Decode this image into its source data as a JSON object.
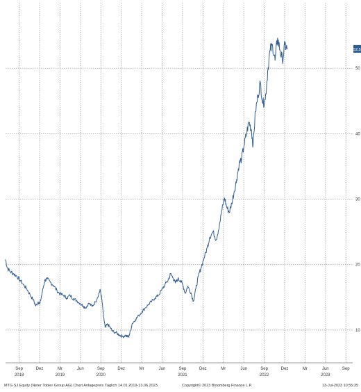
{
  "colors": {
    "line": "#2e5d93",
    "grid": "#9a9a9a",
    "badge": "#2e5d93",
    "badge_text": "#ffffff"
  },
  "footer": {
    "left": "MTG SJ Equity (Neter Tobler Group AG) Chart Anlagepreis Täglich 14.01.2019-13.06.2023",
    "middle": "Copyright© 2023 Bloomberg Finance L.P.",
    "right": "13-Jul-2023 10:55:35"
  },
  "last_value_label": "52.5",
  "chart_data": {
    "type": "line",
    "title": "",
    "xlabel": "",
    "ylabel": "",
    "ylim": [
      5,
      60
    ],
    "y_ticks": [
      10,
      20,
      30,
      40,
      50
    ],
    "grid": true,
    "x_ticks": [
      {
        "t": 2019.667,
        "label": "Sep"
      },
      {
        "t": 2019.917,
        "label": "Dez"
      },
      {
        "t": 2020.167,
        "label": "Mr"
      },
      {
        "t": 2020.417,
        "label": "Jun"
      },
      {
        "t": 2020.667,
        "label": "Sep"
      },
      {
        "t": 2020.917,
        "label": "Dez"
      },
      {
        "t": 2021.167,
        "label": "Mr"
      },
      {
        "t": 2021.417,
        "label": "Jun"
      },
      {
        "t": 2021.667,
        "label": "Sep"
      },
      {
        "t": 2021.917,
        "label": "Dez"
      },
      {
        "t": 2022.167,
        "label": "Mr"
      },
      {
        "t": 2022.417,
        "label": "Jun"
      },
      {
        "t": 2022.667,
        "label": "Sep"
      },
      {
        "t": 2022.917,
        "label": "Dez"
      },
      {
        "t": 2023.167,
        "label": "Mr"
      },
      {
        "t": 2023.417,
        "label": "Jun"
      },
      {
        "t": 2023.667,
        "label": "Sep"
      }
    ],
    "year_labels": [
      {
        "t": 2019.667,
        "label": "2018"
      },
      {
        "t": 2020.167,
        "label": "2019"
      },
      {
        "t": 2020.667,
        "label": "2020"
      },
      {
        "t": 2021.667,
        "label": "2021"
      },
      {
        "t": 2022.667,
        "label": "2022"
      },
      {
        "t": 2023.417,
        "label": "2023"
      }
    ],
    "series": [
      {
        "points": [
          [
            2019.5,
            20.8
          ],
          [
            2019.52,
            19.5
          ],
          [
            2019.56,
            18.9
          ],
          [
            2019.6,
            18.6
          ],
          [
            2019.64,
            18.2
          ],
          [
            2019.68,
            17.6
          ],
          [
            2019.72,
            16.9
          ],
          [
            2019.76,
            16.3
          ],
          [
            2019.8,
            15.4
          ],
          [
            2019.84,
            14.6
          ],
          [
            2019.87,
            13.7
          ],
          [
            2019.9,
            14.3
          ],
          [
            2019.92,
            14.0
          ],
          [
            2019.95,
            15.8
          ],
          [
            2019.98,
            17.6
          ],
          [
            2020.01,
            17.8
          ],
          [
            2020.05,
            17.3
          ],
          [
            2020.09,
            16.8
          ],
          [
            2020.13,
            16.0
          ],
          [
            2020.17,
            15.5
          ],
          [
            2020.21,
            15.3
          ],
          [
            2020.25,
            14.9
          ],
          [
            2020.29,
            15.3
          ],
          [
            2020.33,
            14.8
          ],
          [
            2020.37,
            14.5
          ],
          [
            2020.41,
            14.1
          ],
          [
            2020.45,
            13.7
          ],
          [
            2020.48,
            13.4
          ],
          [
            2020.52,
            14.1
          ],
          [
            2020.56,
            13.6
          ],
          [
            2020.6,
            14.3
          ],
          [
            2020.64,
            15.5
          ],
          [
            2020.66,
            16.1
          ],
          [
            2020.68,
            14.6
          ],
          [
            2020.7,
            12.0
          ],
          [
            2020.72,
            10.4
          ],
          [
            2020.75,
            10.9
          ],
          [
            2020.78,
            10.4
          ],
          [
            2020.81,
            9.8
          ],
          [
            2020.85,
            9.6
          ],
          [
            2020.89,
            9.3
          ],
          [
            2020.93,
            9.0
          ],
          [
            2020.97,
            9.2
          ],
          [
            2021.0,
            8.9
          ],
          [
            2021.02,
            9.4
          ],
          [
            2021.05,
            11.0
          ],
          [
            2021.09,
            11.6
          ],
          [
            2021.13,
            12.2
          ],
          [
            2021.17,
            12.8
          ],
          [
            2021.21,
            13.4
          ],
          [
            2021.25,
            13.9
          ],
          [
            2021.29,
            14.4
          ],
          [
            2021.33,
            14.9
          ],
          [
            2021.37,
            15.3
          ],
          [
            2021.41,
            16.1
          ],
          [
            2021.45,
            16.9
          ],
          [
            2021.49,
            17.6
          ],
          [
            2021.52,
            18.6
          ],
          [
            2021.55,
            18.0
          ],
          [
            2021.58,
            17.2
          ],
          [
            2021.61,
            17.8
          ],
          [
            2021.64,
            17.6
          ],
          [
            2021.67,
            16.9
          ],
          [
            2021.7,
            15.6
          ],
          [
            2021.73,
            16.7
          ],
          [
            2021.77,
            15.7
          ],
          [
            2021.8,
            14.4
          ],
          [
            2021.83,
            16.3
          ],
          [
            2021.86,
            18.2
          ],
          [
            2021.89,
            19.4
          ],
          [
            2021.93,
            21.0
          ],
          [
            2021.97,
            22.6
          ],
          [
            2022.0,
            24.2
          ],
          [
            2022.04,
            25.0
          ],
          [
            2022.08,
            23.8
          ],
          [
            2022.12,
            26.2
          ],
          [
            2022.15,
            28.4
          ],
          [
            2022.18,
            30.2
          ],
          [
            2022.21,
            28.7
          ],
          [
            2022.24,
            28.0
          ],
          [
            2022.27,
            29.4
          ],
          [
            2022.3,
            31.2
          ],
          [
            2022.33,
            33.0
          ],
          [
            2022.36,
            35.4
          ],
          [
            2022.39,
            36.2
          ],
          [
            2022.42,
            38.2
          ],
          [
            2022.45,
            40.0
          ],
          [
            2022.48,
            41.8
          ],
          [
            2022.51,
            40.6
          ],
          [
            2022.53,
            38.2
          ],
          [
            2022.56,
            43.4
          ],
          [
            2022.59,
            45.8
          ],
          [
            2022.62,
            47.8
          ],
          [
            2022.65,
            44.6
          ],
          [
            2022.68,
            45.2
          ],
          [
            2022.71,
            49.6
          ],
          [
            2022.74,
            52.8
          ],
          [
            2022.77,
            53.4
          ],
          [
            2022.8,
            51.2
          ],
          [
            2022.83,
            54.6
          ],
          [
            2022.86,
            52.8
          ],
          [
            2022.89,
            51.2
          ],
          [
            2022.92,
            53.6
          ],
          [
            2022.95,
            52.9
          ]
        ]
      }
    ]
  }
}
